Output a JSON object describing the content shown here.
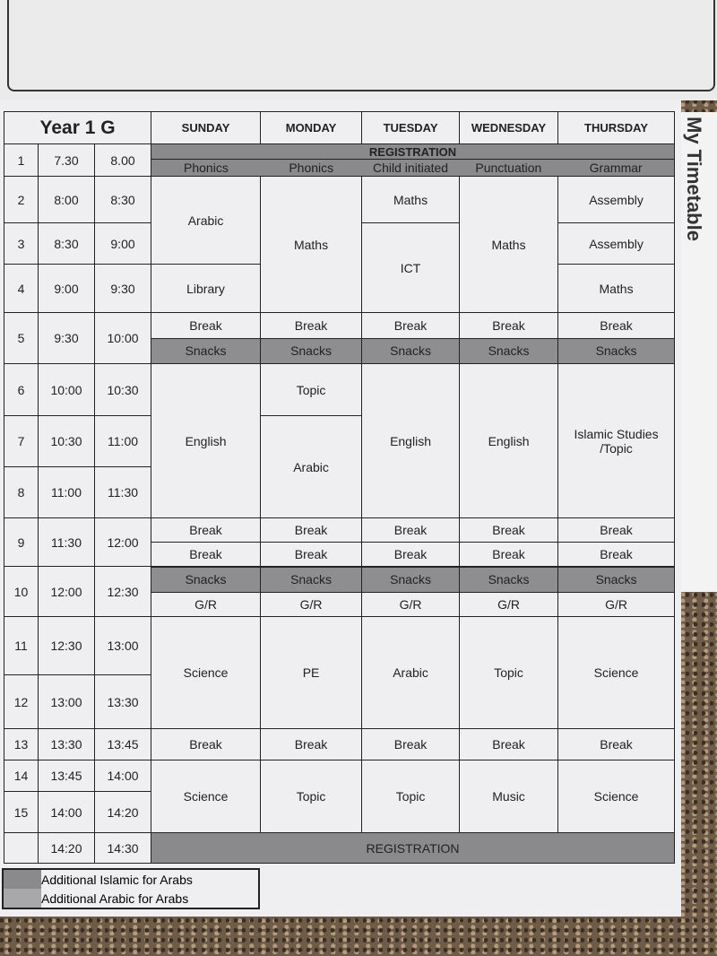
{
  "class_name": "Year 1 G",
  "brand_text": "My Timetable",
  "days": [
    "SUNDAY",
    "MONDAY",
    "TUESDAY",
    "WEDNESDAY",
    "THURSDAY"
  ],
  "legend": [
    "Additional Islamic for Arabs",
    "Additional Arabic for Arabs"
  ],
  "colors": {
    "shade": "#8a8a8c",
    "paper": "#efeef0"
  },
  "rows": [
    {
      "num": "1",
      "start": "7.30",
      "end": "8.00",
      "h": 36,
      "cells": [
        {
          "banner": "REGISTRATION",
          "subs": [
            "Phonics",
            "Phonics",
            "Child initiated",
            "Punctuation",
            "Grammar"
          ]
        }
      ]
    },
    {
      "num": "2",
      "start": "8:00",
      "end": "8:30",
      "h": 52,
      "cells": [
        {
          "text": "Arabic",
          "rowspan": 2
        },
        {
          "text": "Maths",
          "rowspan": 3
        },
        {
          "text": "Maths"
        },
        {
          "text": "Maths",
          "rowspan": 3
        },
        {
          "text": "Assembly"
        }
      ]
    },
    {
      "num": "3",
      "start": "8:30",
      "end": "9:00",
      "h": 46,
      "cells": [
        {
          "text": "ICT",
          "rowspan": 2
        },
        {
          "text": "Assembly"
        }
      ]
    },
    {
      "num": "4",
      "start": "9:00",
      "end": "9:30",
      "h": 54,
      "cells": [
        {
          "text": "Library"
        },
        {
          "text": "Maths"
        }
      ]
    },
    {
      "num": "5",
      "start": "9:30",
      "end": "10:00",
      "h": 56,
      "cells": [
        {
          "parts": [
            "Break",
            "Snacks"
          ],
          "shaded": [
            false,
            true
          ]
        },
        {
          "parts": [
            "Break",
            "Snacks"
          ],
          "shaded": [
            false,
            true
          ]
        },
        {
          "parts": [
            "Break",
            "Snacks"
          ],
          "shaded": [
            false,
            true
          ]
        },
        {
          "parts": [
            "Break",
            "Snacks"
          ],
          "shaded": [
            false,
            true
          ]
        },
        {
          "parts": [
            "Break",
            "Snacks"
          ],
          "shaded": [
            false,
            true
          ]
        }
      ]
    },
    {
      "num": "6",
      "start": "10:00",
      "end": "10:30",
      "h": 58,
      "cells": [
        {
          "text": "English",
          "rowspan": 3
        },
        {
          "text": "Topic"
        },
        {
          "text": "English",
          "rowspan": 3
        },
        {
          "text": "English",
          "rowspan": 3
        },
        {
          "text": "Islamic Studies /Topic",
          "rowspan": 3
        }
      ]
    },
    {
      "num": "7",
      "start": "10:30",
      "end": "11:00",
      "h": 57,
      "cells": [
        {
          "text": "Arabic",
          "rowspan": 2
        }
      ]
    },
    {
      "num": "8",
      "start": "11:00",
      "end": "11:30",
      "h": 57,
      "cells": []
    },
    {
      "num": "9",
      "start": "11:30",
      "end": "12:00",
      "h": 53,
      "cells": [
        {
          "parts": [
            "Break",
            "Break"
          ]
        },
        {
          "parts": [
            "Break",
            "Break"
          ]
        },
        {
          "parts": [
            "Break",
            "Break"
          ]
        },
        {
          "parts": [
            "Break",
            "Break"
          ]
        },
        {
          "parts": [
            "Break",
            "Break"
          ]
        }
      ]
    },
    {
      "num": "10",
      "start": "12:00",
      "end": "12:30",
      "h": 55,
      "cells": [
        {
          "parts": [
            "Snacks",
            "G/R"
          ],
          "shaded": [
            true,
            false
          ]
        },
        {
          "parts": [
            "Snacks",
            "G/R"
          ],
          "shaded": [
            true,
            false
          ]
        },
        {
          "parts": [
            "Snacks",
            "G/R"
          ],
          "shaded": [
            true,
            false
          ]
        },
        {
          "parts": [
            "Snacks",
            "G/R"
          ],
          "shaded": [
            true,
            false
          ]
        },
        {
          "parts": [
            "Snacks",
            "G/R"
          ],
          "shaded": [
            true,
            false
          ]
        }
      ]
    },
    {
      "num": "11",
      "start": "12:30",
      "end": "13:00",
      "h": 65,
      "cells": [
        {
          "text": "Science",
          "rowspan": 2
        },
        {
          "text": "PE",
          "rowspan": 2
        },
        {
          "text": "Arabic",
          "rowspan": 2
        },
        {
          "text": "Topic",
          "rowspan": 2
        },
        {
          "text": "Science",
          "rowspan": 2
        }
      ]
    },
    {
      "num": "12",
      "start": "13:00",
      "end": "13:30",
      "h": 60,
      "cells": []
    },
    {
      "num": "13",
      "start": "13:30",
      "end": "13:45",
      "h": 35,
      "cells": [
        {
          "text": "Break"
        },
        {
          "text": "Break"
        },
        {
          "text": "Break"
        },
        {
          "text": "Break"
        },
        {
          "text": "Break"
        }
      ]
    },
    {
      "num": "14",
      "start": "13:45",
      "end": "14:00",
      "h": 35,
      "cells": [
        {
          "text": "Science",
          "rowspan": 2
        },
        {
          "text": "Topic",
          "rowspan": 2
        },
        {
          "text": "Topic",
          "rowspan": 2
        },
        {
          "text": "Music",
          "rowspan": 2
        },
        {
          "text": "Science",
          "rowspan": 2
        }
      ]
    },
    {
      "num": "15",
      "start": "14:00",
      "end": "14:20",
      "h": 46,
      "cells": []
    },
    {
      "num": "",
      "start": "14:20",
      "end": "14:30",
      "h": 34,
      "cells": [
        {
          "banner_only": "REGISTRATION"
        }
      ]
    }
  ]
}
